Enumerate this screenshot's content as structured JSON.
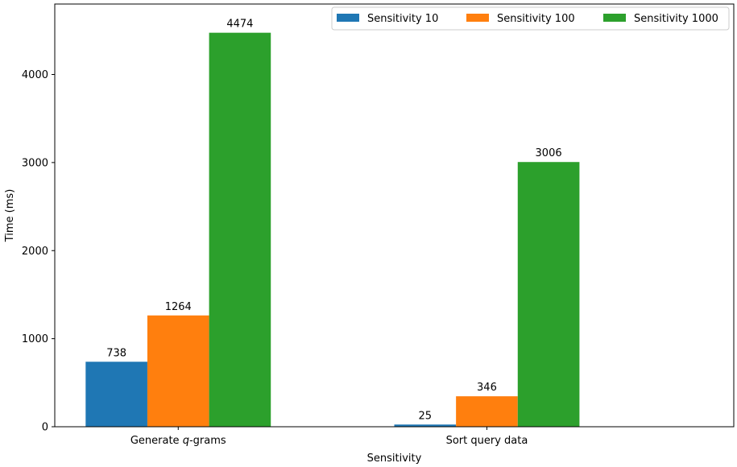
{
  "chart_data": {
    "type": "bar",
    "title": "",
    "xlabel": "Sensitivity",
    "ylabel": "Time (ms)",
    "ylim": [
      0,
      4800
    ],
    "yticks": [
      0,
      1000,
      2000,
      3000,
      4000
    ],
    "grid": false,
    "legend_position": "top-right",
    "categories": [
      {
        "prefix": "Generate ",
        "italic": "q",
        "suffix": "-grams"
      },
      {
        "prefix": "Sort query data",
        "italic": "",
        "suffix": ""
      }
    ],
    "series": [
      {
        "name": "Sensitivity 10",
        "color": "#1f77b4",
        "values": [
          738,
          25
        ]
      },
      {
        "name": "Sensitivity 100",
        "color": "#ff7f0e",
        "values": [
          1264,
          346
        ]
      },
      {
        "name": "Sensitivity 1000",
        "color": "#2ca02c",
        "values": [
          4474,
          3006
        ]
      }
    ]
  }
}
